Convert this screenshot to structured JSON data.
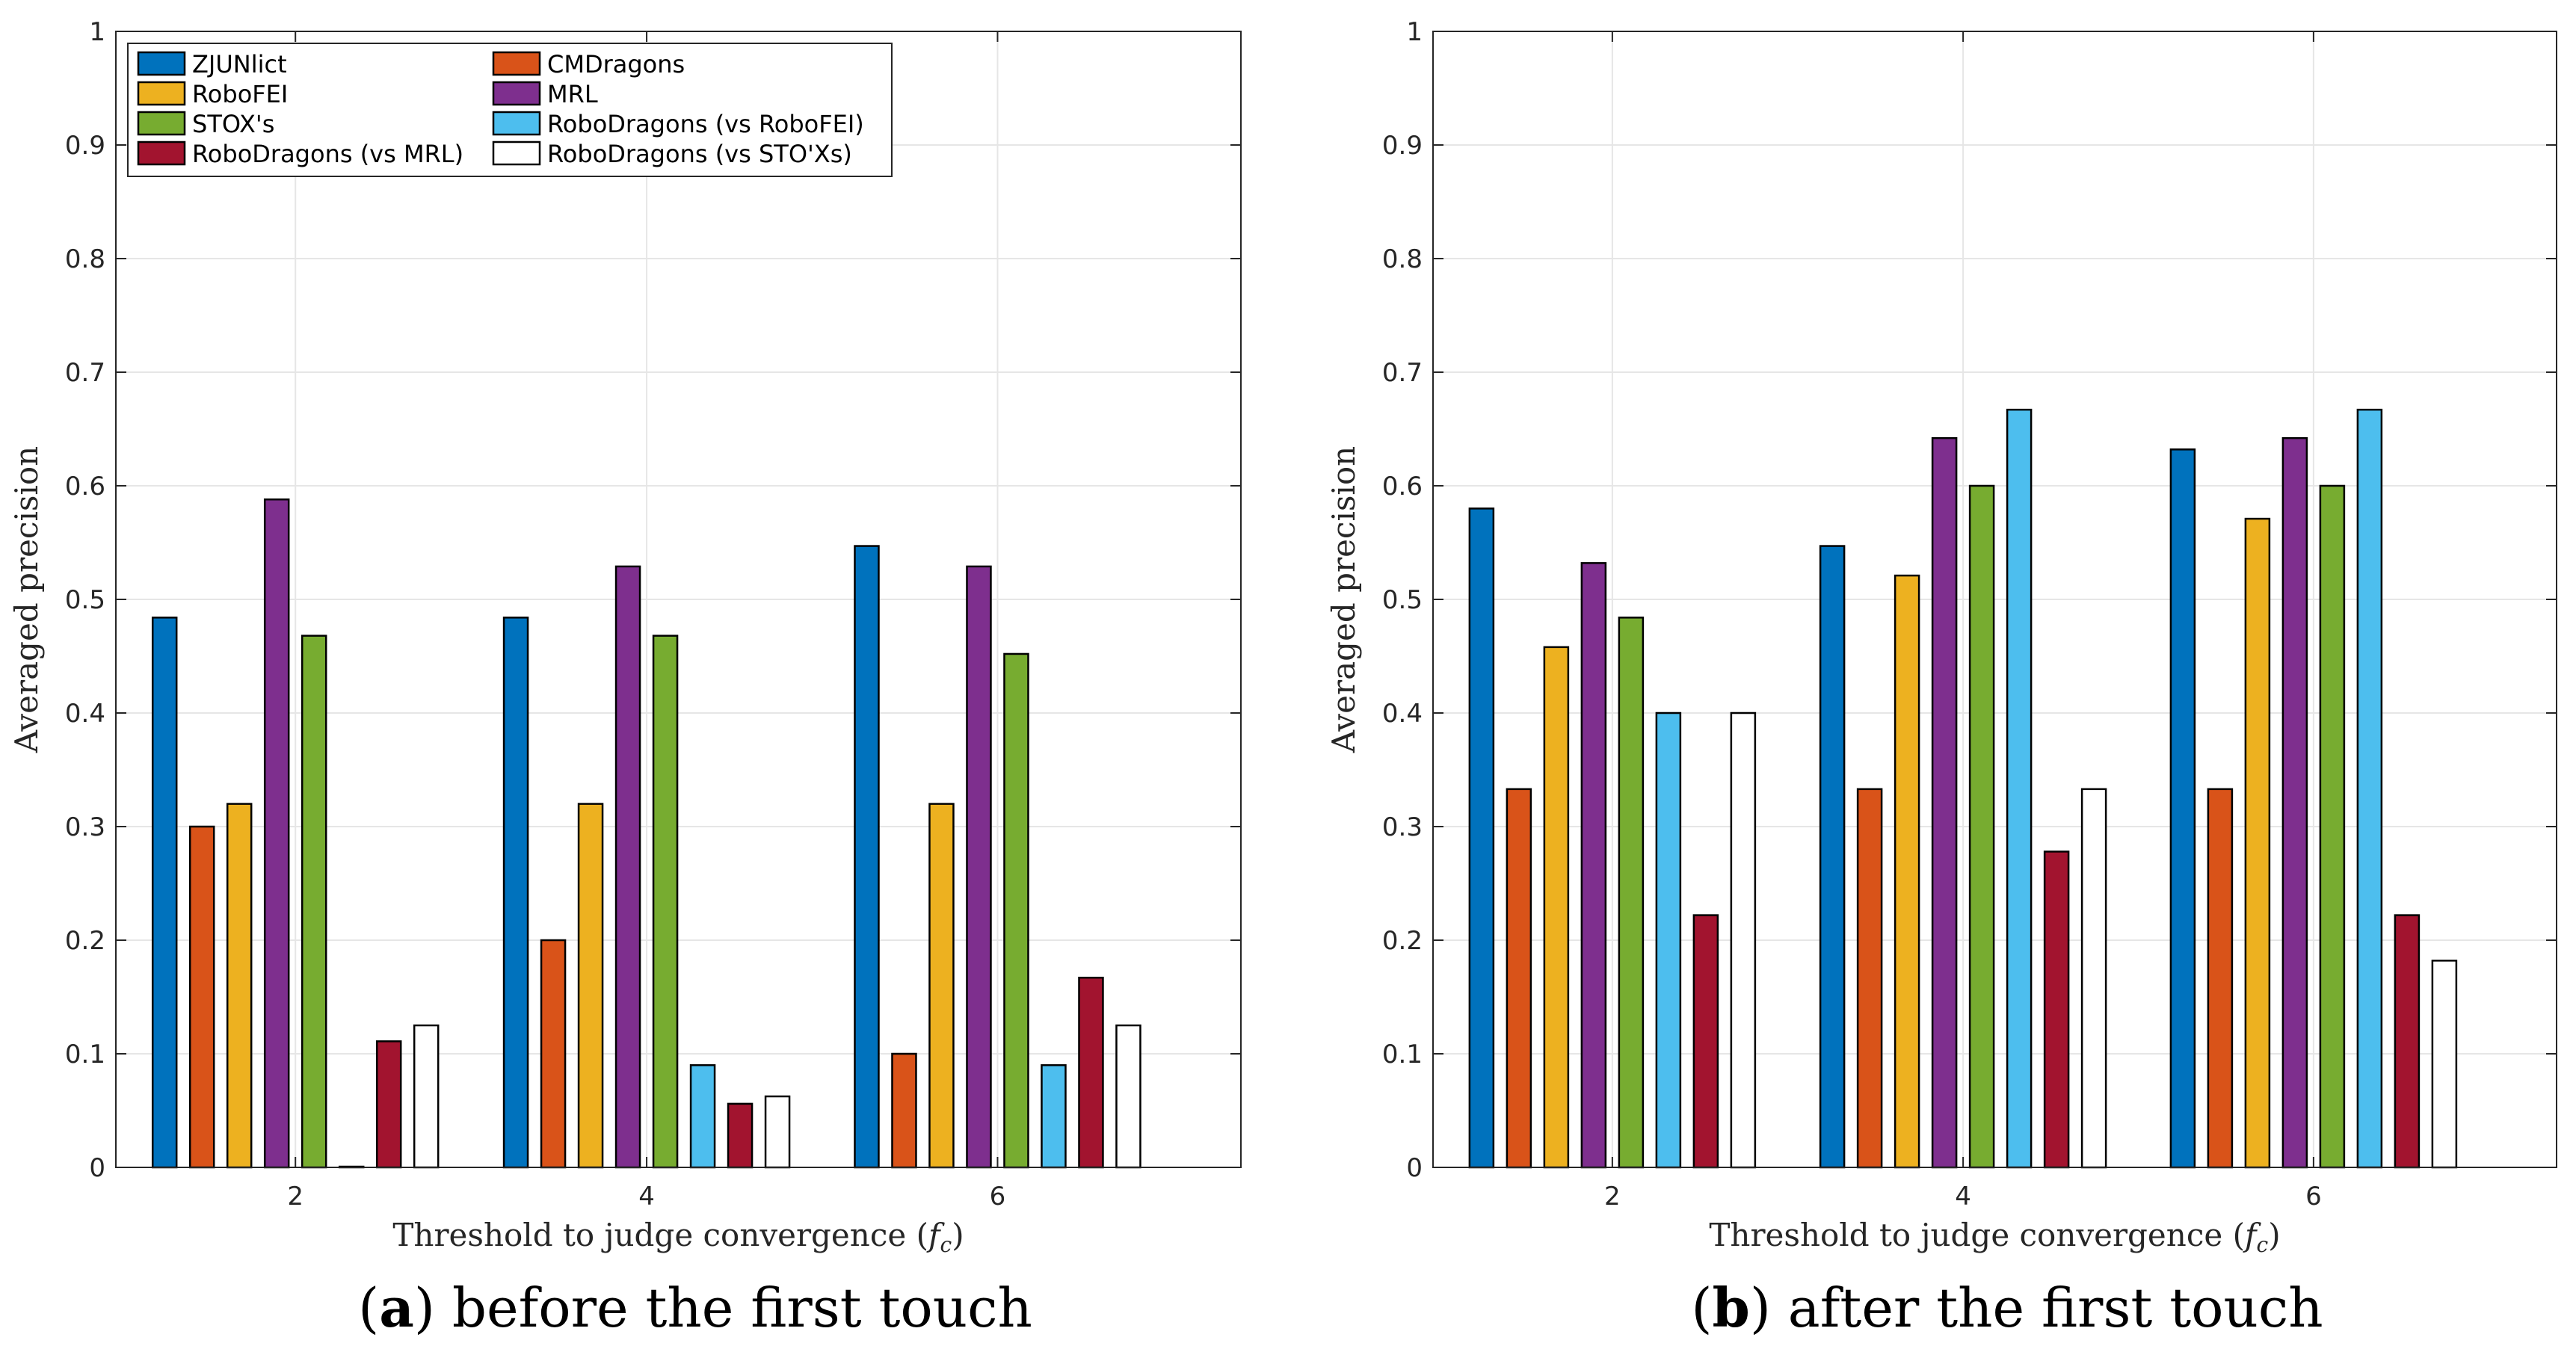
{
  "chart_data": [
    {
      "type": "bar",
      "id": "a",
      "caption_letter": "a",
      "caption_text": " before the first touch",
      "xlabel": "Threshold to judge convergence (",
      "xlabel_symbol": "f",
      "xlabel_subscript": "c",
      "xlabel_close": ")",
      "ylabel": "Averaged precision",
      "categories": [
        "2",
        "4",
        "6"
      ],
      "ylim": [
        0,
        1
      ],
      "yticks": [
        "0",
        "0.1",
        "0.2",
        "0.3",
        "0.4",
        "0.5",
        "0.6",
        "0.7",
        "0.8",
        "0.9",
        "1"
      ],
      "grid": true,
      "legend_position": "top-left",
      "series": [
        {
          "name": "ZJUNlict",
          "color": "#0072BD",
          "values": [
            0.484,
            0.484,
            0.547
          ]
        },
        {
          "name": "CMDragons",
          "color": "#D95319",
          "values": [
            0.3,
            0.2,
            0.1
          ]
        },
        {
          "name": "RoboFEI",
          "color": "#EDB120",
          "values": [
            0.32,
            0.32,
            0.32
          ]
        },
        {
          "name": "MRL",
          "color": "#7E2F8E",
          "values": [
            0.588,
            0.529,
            0.529
          ]
        },
        {
          "name": "STOX's",
          "color": "#77AC30",
          "values": [
            0.468,
            0.468,
            0.452
          ]
        },
        {
          "name": "RoboDragons (vs RoboFEI)",
          "color": "#4DBEEE",
          "values": [
            0.0,
            0.09,
            0.09
          ]
        },
        {
          "name": "RoboDragons (vs MRL)",
          "color": "#A2142F",
          "values": [
            0.111,
            0.056,
            0.167
          ]
        },
        {
          "name": "RoboDragons (vs STO'Xs)",
          "color": "#FFFFFF",
          "values": [
            0.125,
            0.0625,
            0.125
          ]
        }
      ]
    },
    {
      "type": "bar",
      "id": "b",
      "caption_letter": "b",
      "caption_text": " after the first touch",
      "xlabel": "Threshold to judge convergence (",
      "xlabel_symbol": "f",
      "xlabel_subscript": "c",
      "xlabel_close": ")",
      "ylabel": "Averaged precision",
      "categories": [
        "2",
        "4",
        "6"
      ],
      "ylim": [
        0,
        1
      ],
      "yticks": [
        "0",
        "0.1",
        "0.2",
        "0.3",
        "0.4",
        "0.5",
        "0.6",
        "0.7",
        "0.8",
        "0.9",
        "1"
      ],
      "grid": true,
      "legend_position": "none",
      "series": [
        {
          "name": "ZJUNlict",
          "color": "#0072BD",
          "values": [
            0.58,
            0.547,
            0.632
          ]
        },
        {
          "name": "CMDragons",
          "color": "#D95319",
          "values": [
            0.333,
            0.333,
            0.333
          ]
        },
        {
          "name": "RoboFEI",
          "color": "#EDB120",
          "values": [
            0.458,
            0.521,
            0.571
          ]
        },
        {
          "name": "MRL",
          "color": "#7E2F8E",
          "values": [
            0.532,
            0.642,
            0.642
          ]
        },
        {
          "name": "STOX's",
          "color": "#77AC30",
          "values": [
            0.484,
            0.6,
            0.6
          ]
        },
        {
          "name": "RoboDragons (vs RoboFEI)",
          "color": "#4DBEEE",
          "values": [
            0.4,
            0.667,
            0.667
          ]
        },
        {
          "name": "RoboDragons (vs MRL)",
          "color": "#A2142F",
          "values": [
            0.222,
            0.278,
            0.222
          ]
        },
        {
          "name": "RoboDragons (vs STO'Xs)",
          "color": "#FFFFFF",
          "values": [
            0.4,
            0.333,
            0.182
          ]
        }
      ]
    }
  ]
}
